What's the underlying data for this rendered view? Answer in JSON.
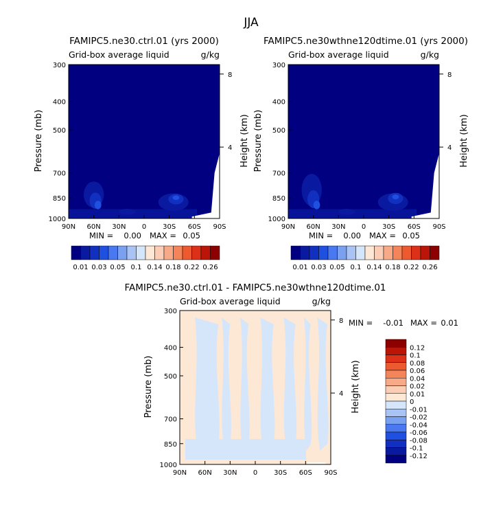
{
  "figure": {
    "title": "JJA"
  },
  "colorbar_top": {
    "labels": [
      "0.01",
      "0.03",
      "0.05",
      "0.1",
      "0.14",
      "0.18",
      "0.22",
      "0.26"
    ],
    "colors": [
      "#000080",
      "#0a1aa0",
      "#1230c0",
      "#2050e0",
      "#4a78f0",
      "#7aa0f0",
      "#a9c4f4",
      "#d6e6fa",
      "#fde8d6",
      "#fbcdb4",
      "#f8aa88",
      "#f4845a",
      "#ee5a30",
      "#dd3018",
      "#bb1508",
      "#8c0000"
    ]
  },
  "colorbar_diff": {
    "labels": [
      "0.12",
      "0.1",
      "0.08",
      "0.06",
      "0.04",
      "0.02",
      "0.01",
      "0",
      "-0.01",
      "-0.02",
      "-0.04",
      "-0.06",
      "-0.08",
      "-0.1",
      "-0.12"
    ],
    "colors": [
      "#8c0000",
      "#bb1508",
      "#dd3018",
      "#ee5a30",
      "#f4845a",
      "#f8aa88",
      "#fbcdb4",
      "#fde8d6",
      "#d6e6fa",
      "#a9c4f4",
      "#7aa0f0",
      "#4a78f0",
      "#2050e0",
      "#1230c0",
      "#0a1aa0",
      "#000080"
    ]
  },
  "chart_data": [
    {
      "type": "heatmap",
      "title": "FAMIPC5.ne30.ctrl.01 (yrs 2000)",
      "subtitle_left": "Grid-box average liquid",
      "units": "g/kg",
      "ylabel": "Pressure (mb)",
      "y2label": "Height (km)",
      "x_ticks": [
        "90N",
        "60N",
        "30N",
        "0",
        "30S",
        "60S",
        "90S"
      ],
      "x_values": [
        90,
        60,
        30,
        0,
        -30,
        -60,
        -90
      ],
      "y_ticks": [
        "300",
        "400",
        "500",
        "700",
        "850",
        "1000"
      ],
      "y_values": [
        300,
        400,
        500,
        700,
        850,
        1000
      ],
      "y2_ticks": [
        "8",
        "4"
      ],
      "y2_values": [
        8,
        4
      ],
      "ylim": [
        1000,
        300
      ],
      "xlim": [
        90,
        -90
      ],
      "min_label": "MIN =",
      "min_value": "0.00",
      "max_label": "MAX =",
      "max_value": "0.05",
      "background_level": 0,
      "features": [
        {
          "lat": 60,
          "p": 830,
          "level": 1,
          "spread_lat": 12,
          "spread_p": 170
        },
        {
          "lat": 58,
          "p": 870,
          "level": 2,
          "spread_lat": 7,
          "spread_p": 110
        },
        {
          "lat": 55,
          "p": 900,
          "level": 3,
          "spread_lat": 4,
          "spread_p": 60
        },
        {
          "lat": 20,
          "p": 950,
          "level": 1,
          "spread_lat": 10,
          "spread_p": 45
        },
        {
          "lat": -35,
          "p": 880,
          "level": 1,
          "spread_lat": 18,
          "spread_p": 120
        },
        {
          "lat": -38,
          "p": 860,
          "level": 2,
          "spread_lat": 9,
          "spread_p": 70
        },
        {
          "lat": -38,
          "p": 850,
          "level": 3,
          "spread_lat": 4,
          "spread_p": 30
        }
      ]
    },
    {
      "type": "heatmap",
      "title": "FAMIPC5.ne30wthne120dtime.01 (yrs 2000)",
      "subtitle_left": "Grid-box average liquid",
      "units": "g/kg",
      "ylabel": "Pressure (mb)",
      "y2label": "Height (km)",
      "x_ticks": [
        "90N",
        "60N",
        "30N",
        "0",
        "30S",
        "60S",
        "90S"
      ],
      "x_values": [
        90,
        60,
        30,
        0,
        -30,
        -60,
        -90
      ],
      "y_ticks": [
        "300",
        "400",
        "500",
        "700",
        "850",
        "1000"
      ],
      "y_values": [
        300,
        400,
        500,
        700,
        850,
        1000
      ],
      "y2_ticks": [
        "8",
        "4"
      ],
      "y2_values": [
        8,
        4
      ],
      "ylim": [
        1000,
        300
      ],
      "xlim": [
        90,
        -90
      ],
      "min_label": "MIN =",
      "min_value": "0.00",
      "max_label": "MAX =",
      "max_value": "0.05",
      "background_level": 0,
      "features": [
        {
          "lat": 62,
          "p": 800,
          "level": 1,
          "spread_lat": 12,
          "spread_p": 200
        },
        {
          "lat": 60,
          "p": 860,
          "level": 2,
          "spread_lat": 7,
          "spread_p": 120
        },
        {
          "lat": 56,
          "p": 900,
          "level": 3,
          "spread_lat": 4,
          "spread_p": 60
        },
        {
          "lat": 20,
          "p": 950,
          "level": 1,
          "spread_lat": 10,
          "spread_p": 45
        },
        {
          "lat": -35,
          "p": 880,
          "level": 1,
          "spread_lat": 18,
          "spread_p": 120
        },
        {
          "lat": -38,
          "p": 855,
          "level": 2,
          "spread_lat": 9,
          "spread_p": 75
        },
        {
          "lat": -38,
          "p": 845,
          "level": 3,
          "spread_lat": 4,
          "spread_p": 32
        }
      ]
    },
    {
      "type": "heatmap",
      "title": "FAMIPC5.ne30.ctrl.01 - FAMIPC5.ne30wthne120dtime.01",
      "subtitle_left": "Grid-box average liquid",
      "units": "g/kg",
      "ylabel": "Pressure (mb)",
      "y2label": "Height (km)",
      "x_ticks": [
        "90N",
        "60N",
        "30N",
        "0",
        "30S",
        "60S",
        "90S"
      ],
      "x_values": [
        90,
        60,
        30,
        0,
        -30,
        -60,
        -90
      ],
      "y_ticks": [
        "300",
        "400",
        "500",
        "700",
        "850",
        "1000"
      ],
      "y_values": [
        300,
        400,
        500,
        700,
        850,
        1000
      ],
      "y2_ticks": [
        "8",
        "4"
      ],
      "y2_values": [
        8,
        4
      ],
      "ylim": [
        1000,
        300
      ],
      "xlim": [
        90,
        -90
      ],
      "min_label": "MIN =",
      "min_value": "-0.01",
      "max_label": "MAX =",
      "max_value": "0.01"
    }
  ]
}
